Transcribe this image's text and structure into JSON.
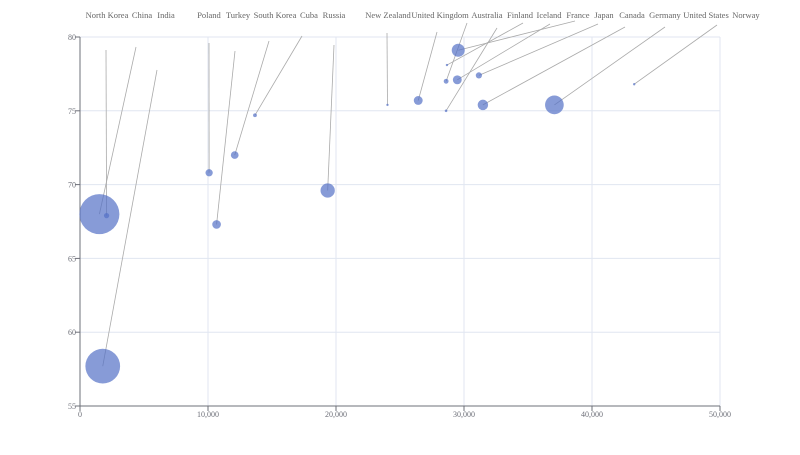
{
  "chart_data": {
    "type": "scatter",
    "xlim": [
      0,
      50000
    ],
    "ylim": [
      55,
      80
    ],
    "x_ticks": [
      "0",
      "10,000",
      "20,000",
      "30,000",
      "40,000",
      "50,000"
    ],
    "y_ticks": [
      "55",
      "60",
      "65",
      "70",
      "75",
      "80"
    ],
    "grid": true,
    "color": "#5470c6",
    "points": [
      {
        "name": "North Korea",
        "x": 2076,
        "y": 67.9,
        "population": 20194354
      },
      {
        "name": "China",
        "x": 1516,
        "y": 68,
        "population": 1154605773
      },
      {
        "name": "India",
        "x": 1777,
        "y": 57.7,
        "population": 870601776
      },
      {
        "name": "Poland",
        "x": 10088,
        "y": 70.8,
        "population": 38195258
      },
      {
        "name": "Turkey",
        "x": 10670,
        "y": 67.3,
        "population": 53994605
      },
      {
        "name": "South Korea",
        "x": 12087,
        "y": 72,
        "population": 42972254
      },
      {
        "name": "Cuba",
        "x": 13670,
        "y": 74.7,
        "population": 10582082
      },
      {
        "name": "Russia",
        "x": 19349,
        "y": 69.6,
        "population": 147568552
      },
      {
        "name": "New Zealand",
        "x": 24021,
        "y": 75.4,
        "population": 3397534
      },
      {
        "name": "United Kingdom",
        "x": 26424,
        "y": 75.7,
        "population": 57110117
      },
      {
        "name": "Australia",
        "x": 28604,
        "y": 77,
        "population": 17096869
      },
      {
        "name": "Finland",
        "x": 28599,
        "y": 75,
        "population": 4986705
      },
      {
        "name": "Iceland",
        "x": 28666,
        "y": 78.1,
        "population": 254830
      },
      {
        "name": "France",
        "x": 29476,
        "y": 77.1,
        "population": 56943299
      },
      {
        "name": "Japan",
        "x": 29550,
        "y": 79.1,
        "population": 122249285
      },
      {
        "name": "Canada",
        "x": 31163,
        "y": 77.4,
        "population": 27662440
      },
      {
        "name": "Germany",
        "x": 31476,
        "y": 75.4,
        "population": 78958237
      },
      {
        "name": "United States",
        "x": 37062,
        "y": 75.4,
        "population": 252847810
      },
      {
        "name": "Norway",
        "x": 43296,
        "y": 76.8,
        "population": 4240375
      }
    ]
  }
}
